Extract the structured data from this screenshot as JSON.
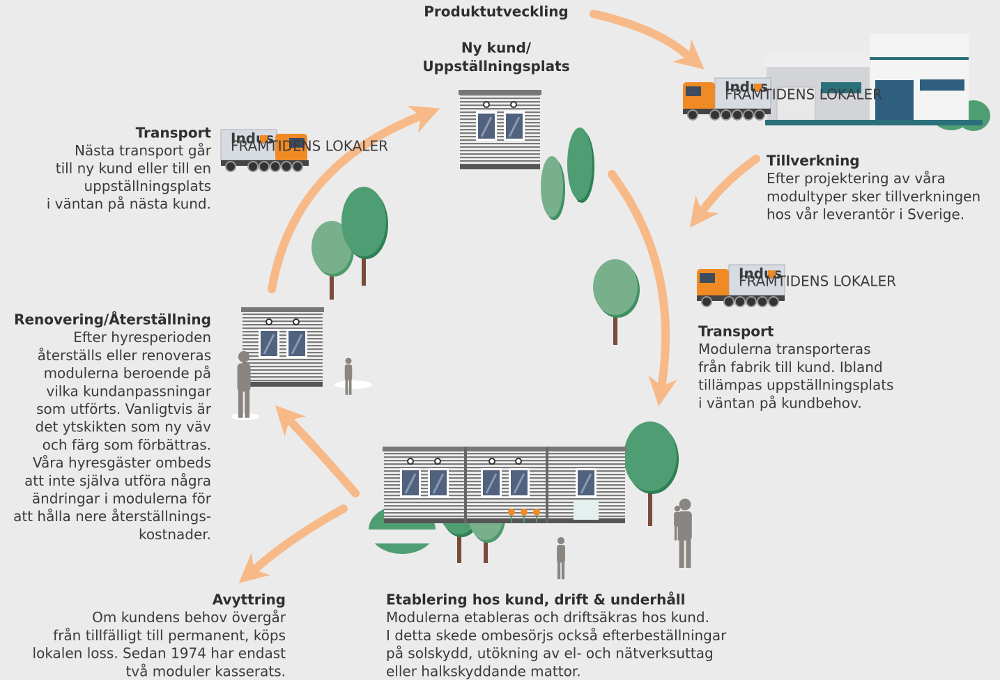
{
  "truck_logo": {
    "brand": "Indus",
    "tagline": "FRAMTIDENS LOKALER"
  },
  "produktutveckling": {
    "title": "Produktutveckling"
  },
  "ny_kund": {
    "title_lines": [
      "Ny kund/",
      "Uppställningsplats"
    ]
  },
  "tillverkning": {
    "title": "Tillverkning",
    "lines": [
      "Efter projektering av våra",
      "modultyper sker tillverkningen",
      "hos vår leverantör i Sverige."
    ]
  },
  "transport_fabrik": {
    "title": "Transport",
    "lines": [
      "Modulerna transporteras",
      "från fabrik till kund. Ibland",
      "tillämpas uppställningsplats",
      "i väntan på kundbehov."
    ]
  },
  "etablering": {
    "title": "Etablering hos kund, drift & underhåll",
    "lines": [
      "Modulerna etableras och driftsäkras hos kund.",
      "I detta skede ombesörjs också efterbeställningar",
      "på solskydd, utökning av el- och nätverksuttag",
      "eller halkskyddande mattor."
    ]
  },
  "avyttring": {
    "title": "Avyttring",
    "lines": [
      "Om kundens behov övergår",
      "från tillfälligt till permanent, köps",
      "lokalen loss. Sedan 1974 har endast",
      "två moduler kasserats."
    ]
  },
  "renovering": {
    "title": "Renovering/Återställning",
    "lines": [
      "Efter hyresperioden",
      "återställs eller renoveras",
      "modulerna beroende på",
      "vilka kundanpassningar",
      "som utförts. Vanligtvis är",
      "det ytskikten som ny väv",
      "och färg som förbättras.",
      "Våra hyresgäster ombeds",
      "att inte själva utföra några",
      "ändringar i modulerna för",
      "att hålla nere återställnings-",
      "kostnader."
    ]
  },
  "transport_ny_kund": {
    "title": "Transport",
    "lines": [
      "Nästa transport går",
      "till ny kund eller till en",
      "uppställningsplats",
      "i väntan på nästa kund."
    ]
  }
}
